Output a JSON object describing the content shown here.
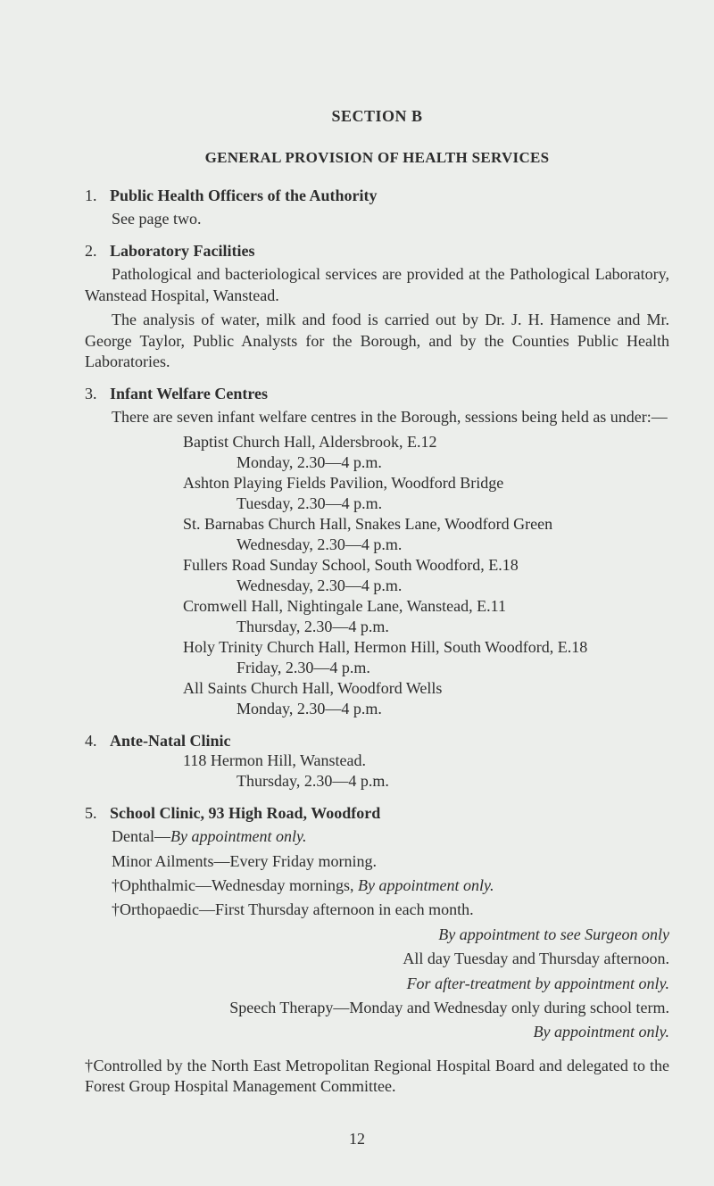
{
  "colors": {
    "page_bg": "#eceeeb",
    "text": "#2d2d2d"
  },
  "typography": {
    "body_fontsize_pt": 13,
    "heading_fontsize_pt": 13,
    "line_height": 1.3,
    "font_family": "serif"
  },
  "section_title": "SECTION B",
  "subtitle": "GENERAL PROVISION OF HEALTH SERVICES",
  "items": [
    {
      "num": "1.",
      "heading": "Public Health Officers of the Authority",
      "body": "See page two."
    },
    {
      "num": "2.",
      "heading": "Laboratory Facilities",
      "para1": "Pathological and bacteriological services are provided at the Pathological Laboratory, Wanstead Hospital, Wanstead.",
      "para2": "The analysis of water, milk and food is carried out by Dr. J. H. Hamence and Mr. George Taylor, Public Analysts for the Borough, and by the Counties Public Health Laboratories."
    },
    {
      "num": "3.",
      "heading": "Infant Welfare Centres",
      "intro": "There are seven infant welfare centres in the Borough, sessions being held as under:—",
      "centres": [
        {
          "name": "Baptist Church Hall, Aldersbrook, E.12",
          "time": "Monday, 2.30—4 p.m."
        },
        {
          "name": "Ashton Playing Fields Pavilion, Woodford Bridge",
          "time": "Tuesday, 2.30—4 p.m."
        },
        {
          "name": "St. Barnabas Church Hall, Snakes Lane, Woodford Green",
          "time": "Wednesday, 2.30—4 p.m."
        },
        {
          "name": "Fullers Road Sunday School, South Woodford, E.18",
          "time": "Wednesday, 2.30—4 p.m."
        },
        {
          "name": "Cromwell Hall, Nightingale Lane, Wanstead, E.11",
          "time": "Thursday, 2.30—4 p.m."
        },
        {
          "name": "Holy Trinity Church Hall, Hermon Hill, South Woodford, E.18",
          "time": "Friday, 2.30—4 p.m."
        },
        {
          "name": "All Saints Church Hall, Woodford Wells",
          "time": "Monday, 2.30—4 p.m."
        }
      ]
    },
    {
      "num": "4.",
      "heading": "Ante-Natal Clinic",
      "centre_name": "118 Hermon Hill, Wanstead.",
      "centre_time": "Thursday, 2.30—4 p.m."
    },
    {
      "num": "5.",
      "heading": "School Clinic, 93 High Road, Woodford",
      "lines": [
        {
          "label": "Dental—",
          "detail_italic": "By appointment only."
        },
        {
          "plain": "Minor Ailments—Every Friday morning."
        },
        {
          "label": "†Ophthalmic—Wednesday mornings, ",
          "detail_italic": "By appointment only."
        },
        {
          "plain": "†Orthopaedic—First Thursday afternoon in each month."
        }
      ],
      "right1_italic": "By appointment to see Surgeon only",
      "right1_plain": "All day Tuesday and Thursday afternoon.",
      "right2_italic": "For after-treatment by appointment only.",
      "speech_line": "Speech Therapy—Monday and Wednesday only during school term.",
      "right3_italic": "By appointment only."
    }
  ],
  "footnote": "†Controlled by the North East Metropolitan Regional Hospital Board and delegated to the Forest Group Hospital Management Committee.",
  "page_number": "12"
}
